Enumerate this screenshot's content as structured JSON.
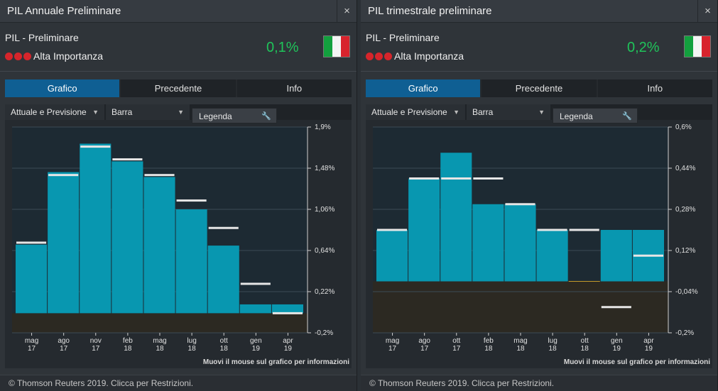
{
  "panels": [
    {
      "title": "PIL Annuale Preliminare",
      "close": "×",
      "subtitle": "PIL - Preliminare",
      "importance": "Alta Importanza",
      "value": "0,1%",
      "tabs": [
        "Grafico",
        "Precedente",
        "Info"
      ],
      "view_select": "Attuale e Previsione",
      "type_select": "Barra",
      "legend_label": "Legenda",
      "hover_note": "Muovi il mouse sul grafico per informazioni",
      "footer": "© Thomson Reuters 2019. Clicca per Restrizioni.",
      "colors": {
        "bar": "#0897b0",
        "forecast": "#e6e6e6",
        "value": "#1fc45a",
        "importance": "#d6252b"
      },
      "icons": {
        "close": "close-icon",
        "importance": "importance-dot-icon",
        "flag": "italy-flag-icon",
        "dropdown": "caret-down-icon",
        "legend": "wrench-icon"
      },
      "chart_data": {
        "type": "bar",
        "categories": [
          "mag 17",
          "ago 17",
          "nov 17",
          "feb 18",
          "mag 18",
          "lug 18",
          "ott 18",
          "gen 19",
          "apr 19"
        ],
        "x_tick_labels": [
          [
            "mag",
            "17"
          ],
          [
            "ago",
            "17"
          ],
          [
            "nov",
            "17"
          ],
          [
            "feb",
            "18"
          ],
          [
            "mag",
            "18"
          ],
          [
            "lug",
            "18"
          ],
          [
            "ott",
            "18"
          ],
          [
            "gen",
            "19"
          ],
          [
            "apr",
            "19"
          ]
        ],
        "series": [
          {
            "name": "Attuale",
            "values": [
              0.7,
              1.44,
              1.73,
              1.55,
              1.39,
              1.06,
              0.69,
              0.09,
              0.09
            ]
          },
          {
            "name": "Previsione",
            "values": [
              0.72,
              1.41,
              1.7,
              1.57,
              1.41,
              1.15,
              0.87,
              0.3,
              0.0
            ]
          }
        ],
        "y_tick_labels": [
          "1,9%",
          "1,48%",
          "1,06%",
          "0,64%",
          "0,22%",
          "-0,2%"
        ],
        "ylim": [
          -0.2,
          1.9
        ],
        "title": "",
        "xlabel": "",
        "ylabel": "",
        "grid": true
      }
    },
    {
      "title": "PIL trimestrale preliminare",
      "close": "×",
      "subtitle": "PIL - Preliminare",
      "importance": "Alta Importanza",
      "value": "0,2%",
      "tabs": [
        "Grafico",
        "Precedente",
        "Info"
      ],
      "view_select": "Attuale e Previsione",
      "type_select": "Barra",
      "legend_label": "Legenda",
      "hover_note": "Muovi il mouse sul grafico per informazioni",
      "footer": "© Thomson Reuters 2019. Clicca per Restrizioni.",
      "colors": {
        "bar": "#0897b0",
        "forecast": "#e6e6e6",
        "value": "#1fc45a",
        "importance": "#d6252b"
      },
      "icons": {
        "close": "close-icon",
        "importance": "importance-dot-icon",
        "flag": "italy-flag-icon",
        "dropdown": "caret-down-icon",
        "legend": "wrench-icon"
      },
      "chart_data": {
        "type": "bar",
        "categories": [
          "mag 17",
          "ago 17",
          "ott 17",
          "feb 18",
          "mag 18",
          "lug 18",
          "ott 18",
          "gen 19",
          "apr 19"
        ],
        "x_tick_labels": [
          [
            "mag",
            "17"
          ],
          [
            "ago",
            "17"
          ],
          [
            "ott",
            "17"
          ],
          [
            "feb",
            "18"
          ],
          [
            "mag",
            "18"
          ],
          [
            "lug",
            "18"
          ],
          [
            "ott",
            "18"
          ],
          [
            "gen",
            "19"
          ],
          [
            "apr",
            "19"
          ]
        ],
        "series": [
          {
            "name": "Attuale",
            "values": [
              0.2,
              0.4,
              0.5,
              0.3,
              0.3,
              0.2,
              0.0,
              0.2,
              0.2
            ]
          },
          {
            "name": "Previsione",
            "values": [
              0.2,
              0.4,
              0.4,
              0.4,
              0.3,
              0.2,
              0.2,
              -0.1,
              0.1
            ]
          }
        ],
        "y_tick_labels": [
          "0,6%",
          "0,44%",
          "0,28%",
          "0,12%",
          "-0,04%",
          "-0,2%"
        ],
        "ylim": [
          -0.2,
          0.6
        ],
        "title": "",
        "xlabel": "",
        "ylabel": "",
        "grid": true
      }
    }
  ]
}
